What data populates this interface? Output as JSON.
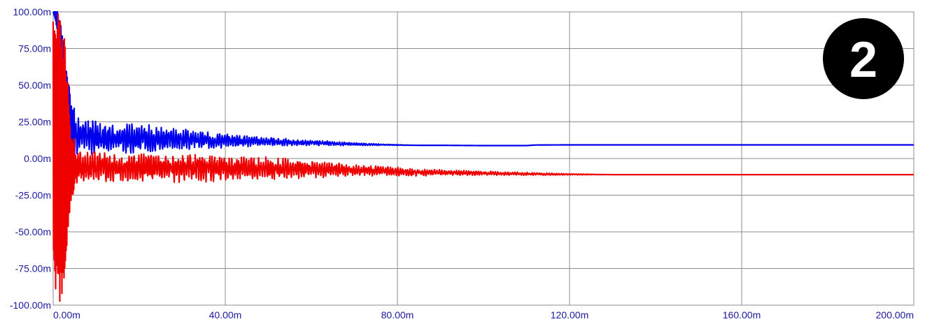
{
  "chart_data": {
    "type": "line",
    "title": "",
    "xlabel": "",
    "ylabel": "",
    "xlim": [
      0,
      200
    ],
    "ylim": [
      -100,
      100
    ],
    "x_ticks": [
      "0.00m",
      "40.00m",
      "80.00m",
      "120.00m",
      "160.00m",
      "200.00m"
    ],
    "x_tick_values": [
      0,
      40,
      80,
      120,
      160,
      200
    ],
    "y_ticks": [
      "100.00m",
      "75.00m",
      "50.00m",
      "25.00m",
      "0.00m",
      "-25.00m",
      "-50.00m",
      "-75.00m",
      "-100.00m"
    ],
    "y_tick_values": [
      100,
      75,
      50,
      25,
      0,
      -25,
      -50,
      -75,
      -100
    ],
    "grid": true,
    "series": [
      {
        "color": "#0000ee",
        "x": [
          0,
          1,
          2,
          3,
          4,
          6,
          8,
          10,
          15,
          20,
          25,
          30,
          35,
          40,
          45,
          50,
          55,
          60,
          65,
          70,
          75,
          80,
          85,
          90,
          100,
          110,
          112,
          120,
          140,
          160,
          180,
          200
        ],
        "y": [
          100,
          95,
          60,
          35,
          20,
          16,
          15,
          14.5,
          14,
          13.8,
          13.5,
          13,
          12.5,
          12.3,
          12,
          11.5,
          11,
          10.6,
          10.2,
          9.8,
          9.5,
          9.2,
          9,
          9,
          8.8,
          8.8,
          9.2,
          9.3,
          9.3,
          9.3,
          9.3,
          9.3
        ],
        "envelope": [
          0,
          8,
          30,
          28,
          24,
          11,
          12,
          12,
          11,
          10,
          9,
          7.5,
          6,
          5,
          4,
          3,
          2.5,
          2,
          1.5,
          1,
          0.6,
          0.3,
          0,
          0,
          0,
          0,
          0,
          0,
          0,
          0,
          0,
          0
        ]
      },
      {
        "color": "#ee0000",
        "x": [
          0,
          1,
          2,
          3,
          4,
          6,
          8,
          10,
          15,
          20,
          25,
          30,
          35,
          40,
          45,
          50,
          55,
          60,
          65,
          70,
          75,
          80,
          85,
          90,
          100,
          110,
          120,
          130,
          140,
          160,
          180,
          200
        ],
        "y": [
          0,
          0,
          0,
          0,
          -5,
          -6,
          -6,
          -6,
          -6,
          -6,
          -6.5,
          -6.5,
          -6.5,
          -6.5,
          -6.5,
          -7,
          -7,
          -7.5,
          -7.5,
          -8,
          -8.5,
          -9,
          -9.5,
          -9.5,
          -10,
          -10.5,
          -10.8,
          -11,
          -11,
          -11,
          -11,
          -11
        ],
        "envelope": [
          100,
          100,
          100,
          80,
          25,
          12,
          12,
          11,
          10.5,
          10,
          10,
          10,
          9.5,
          9,
          8.5,
          8,
          7,
          6,
          5,
          4,
          3.5,
          3,
          2.5,
          2,
          1.5,
          1,
          0.5,
          0,
          0,
          0,
          0,
          0
        ]
      }
    ]
  },
  "badge": {
    "label": "2"
  }
}
